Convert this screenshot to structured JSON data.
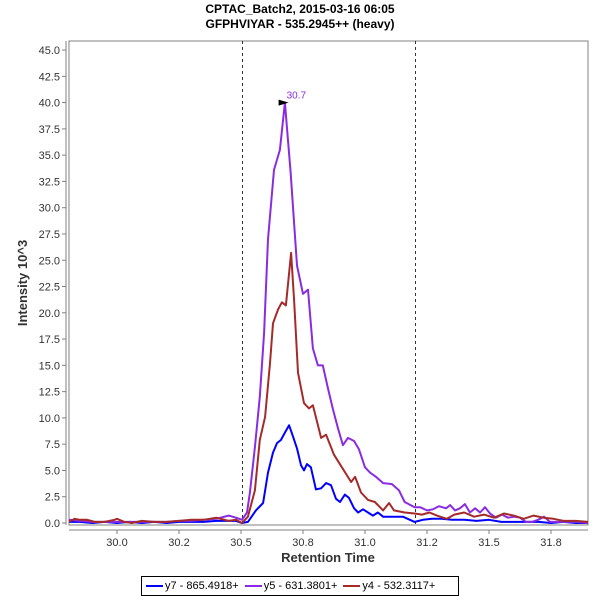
{
  "title": "CPTAC_Batch2, 2015-03-16 06:05",
  "subtitle": "GFPHVIYAR - 535.2945++ (heavy)",
  "chart_data": {
    "type": "line",
    "title": "CPTAC_Batch2, 2015-03-16 06:05",
    "subtitle": "GFPHVIYAR - 535.2945++ (heavy)",
    "xlabel": "Retention Time",
    "ylabel": "Intensity 10^3",
    "xlim": [
      29.806,
      31.899
    ],
    "ylim": [
      0,
      46.5
    ],
    "xticks": [
      30.0,
      30.25,
      30.5,
      30.75,
      31.0,
      31.25,
      31.5,
      31.75
    ],
    "xtick_labels": [
      "30.0",
      "30.2",
      "30.5",
      "30.8",
      "31.0",
      "31.2",
      "31.5",
      "31.8"
    ],
    "yticks": [
      0,
      2.5,
      5,
      7.5,
      10,
      12.5,
      15,
      17.5,
      20,
      22.5,
      25,
      27.5,
      30,
      32.5,
      35,
      37.5,
      40,
      42.5,
      45
    ],
    "ytick_labels": [
      "0.0",
      "2.5",
      "5.0",
      "7.5",
      "10.0",
      "12.5",
      "15.0",
      "17.5",
      "20.0",
      "22.5",
      "25.0",
      "27.5",
      "30.0",
      "32.5",
      "35.0",
      "37.5",
      "40.0",
      "42.5",
      "45.0"
    ],
    "integration_boundaries": [
      30.504,
      31.2
    ],
    "peak_annotation": {
      "x": 30.7,
      "y": 40.0,
      "label": "30.7",
      "color": "#8a2be2"
    },
    "legend_position": "bottom",
    "series": [
      {
        "name": "y7 - 865.4918+",
        "color": "#0000ff",
        "x": [
          29.806,
          29.85,
          29.9,
          29.95,
          30.0,
          30.05,
          30.1,
          30.15,
          30.2,
          30.25,
          30.3,
          30.35,
          30.4,
          30.45,
          30.48,
          30.504,
          30.528,
          30.56,
          30.589,
          30.609,
          30.629,
          30.645,
          30.661,
          30.677,
          30.694,
          30.71,
          30.726,
          30.742,
          30.754,
          30.766,
          30.782,
          30.802,
          30.823,
          30.843,
          30.863,
          30.883,
          30.899,
          30.919,
          30.935,
          30.956,
          30.972,
          30.992,
          31.012,
          31.032,
          31.052,
          31.073,
          31.109,
          31.153,
          31.2,
          31.234,
          31.27,
          31.31,
          31.35,
          31.4,
          31.45,
          31.5,
          31.55,
          31.6,
          31.65,
          31.7,
          31.75,
          31.8,
          31.85,
          31.899
        ],
        "y": [
          0.1,
          0.1,
          0.0,
          0.1,
          0.0,
          0.1,
          0.0,
          0.1,
          0.0,
          0.1,
          0.1,
          0.1,
          0.2,
          0.2,
          0.2,
          0.0,
          0.1,
          1.2,
          1.9,
          4.8,
          6.7,
          7.6,
          7.9,
          8.6,
          9.3,
          8.2,
          7.1,
          5.5,
          5.0,
          5.6,
          5.3,
          3.2,
          3.3,
          3.8,
          3.6,
          2.3,
          2.0,
          2.7,
          2.4,
          1.4,
          1.0,
          1.3,
          1.0,
          0.7,
          1.0,
          0.6,
          0.6,
          0.6,
          0.1,
          0.3,
          0.4,
          0.4,
          0.3,
          0.3,
          0.2,
          0.3,
          0.1,
          0.1,
          0.1,
          0.1,
          0.0,
          0.1,
          0.0,
          0.0
        ]
      },
      {
        "name": "y5 - 631.3801+",
        "color": "#8a2be2",
        "x": [
          29.806,
          29.85,
          29.9,
          29.95,
          30.0,
          30.05,
          30.1,
          30.15,
          30.2,
          30.25,
          30.3,
          30.35,
          30.4,
          30.45,
          30.48,
          30.504,
          30.524,
          30.536,
          30.556,
          30.576,
          30.593,
          30.609,
          30.633,
          30.657,
          30.677,
          30.7,
          30.726,
          30.75,
          30.77,
          30.79,
          30.81,
          30.83,
          30.851,
          30.871,
          30.891,
          30.911,
          30.931,
          30.956,
          30.976,
          31.0,
          31.02,
          31.044,
          31.073,
          31.109,
          31.137,
          31.16,
          31.2,
          31.222,
          31.25,
          31.274,
          31.298,
          31.327,
          31.343,
          31.363,
          31.383,
          31.403,
          31.423,
          31.444,
          31.464,
          31.484,
          31.504,
          31.528,
          31.552,
          31.577,
          31.601,
          31.625,
          31.649,
          31.673,
          31.698,
          31.722,
          31.746,
          31.77,
          31.8,
          31.85,
          31.899
        ],
        "y": [
          0.3,
          0.2,
          0.1,
          0.1,
          0.1,
          0.1,
          0.1,
          0.1,
          0.1,
          0.2,
          0.2,
          0.3,
          0.4,
          0.7,
          0.5,
          0.3,
          1.0,
          2.9,
          7.2,
          12.0,
          18.1,
          27.0,
          33.6,
          35.5,
          40.0,
          33.4,
          24.5,
          21.8,
          22.2,
          16.6,
          15.0,
          15.0,
          12.8,
          10.8,
          9.0,
          7.4,
          8.1,
          7.8,
          7.0,
          5.3,
          4.8,
          4.4,
          3.8,
          3.7,
          3.1,
          2.0,
          1.5,
          1.5,
          1.2,
          1.3,
          1.6,
          1.4,
          1.7,
          1.2,
          1.4,
          1.8,
          1.0,
          1.4,
          1.0,
          1.5,
          0.9,
          0.5,
          0.8,
          0.5,
          0.6,
          0.5,
          0.1,
          0.1,
          0.3,
          0.6,
          0.1,
          0.1,
          0.1,
          0.1,
          0.0
        ]
      },
      {
        "name": "y4 - 532.3117+",
        "color": "#a52a2a",
        "x": [
          29.806,
          29.83,
          29.85,
          29.88,
          29.91,
          29.95,
          29.99,
          30.0,
          30.03,
          30.06,
          30.1,
          30.15,
          30.2,
          30.25,
          30.3,
          30.35,
          30.4,
          30.45,
          30.48,
          30.504,
          30.528,
          30.556,
          30.576,
          30.597,
          30.617,
          30.629,
          30.649,
          30.665,
          30.681,
          30.702,
          30.714,
          30.73,
          30.754,
          30.774,
          30.79,
          30.823,
          30.843,
          30.875,
          30.907,
          30.944,
          30.96,
          30.984,
          31.012,
          31.04,
          31.073,
          31.097,
          31.117,
          31.16,
          31.2,
          31.23,
          31.26,
          31.29,
          31.33,
          31.36,
          31.4,
          31.44,
          31.48,
          31.52,
          31.56,
          31.6,
          31.64,
          31.68,
          31.72,
          31.76,
          31.8,
          31.85,
          31.899
        ],
        "y": [
          0.1,
          0.4,
          0.3,
          0.3,
          0.1,
          0.1,
          0.3,
          0.4,
          0.1,
          0.0,
          0.2,
          0.1,
          0.1,
          0.2,
          0.3,
          0.3,
          0.5,
          0.2,
          0.3,
          0.0,
          0.6,
          3.1,
          7.9,
          10.1,
          15.2,
          19.0,
          20.3,
          21.0,
          20.7,
          25.7,
          21.2,
          14.3,
          11.4,
          10.9,
          11.2,
          8.1,
          8.4,
          6.5,
          5.3,
          3.9,
          4.4,
          2.9,
          2.2,
          2.0,
          1.2,
          1.9,
          1.2,
          1.0,
          0.9,
          0.8,
          1.0,
          0.7,
          0.4,
          0.8,
          1.0,
          0.6,
          0.8,
          0.5,
          0.9,
          0.7,
          0.4,
          0.7,
          0.5,
          0.4,
          0.2,
          0.2,
          0.1
        ]
      }
    ]
  }
}
